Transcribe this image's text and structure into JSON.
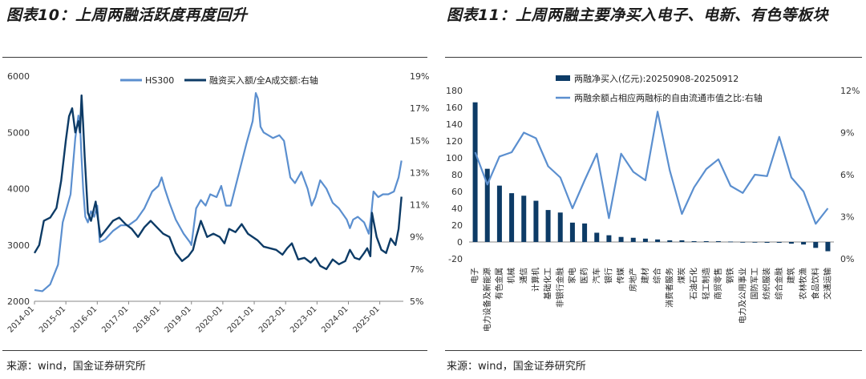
{
  "left_panel": {
    "title": "图表10：上周两融活跃度再度回升",
    "source": "来源：wind，国金证券研究所"
  },
  "right_panel": {
    "title": "图表11：上周两融主要净买入电子、电新、有色等板块",
    "source": "来源：wind，国金证券研究所"
  },
  "colors": {
    "light_blue": "#5b8fcf",
    "dark_navy": "#0d3b66",
    "rule": "#3a3a3a"
  },
  "chart_data": [
    {
      "type": "line",
      "title": "",
      "series": [
        {
          "name": "HS300",
          "axis": "left",
          "color": "#5b8fcf",
          "x": [
            2014.0,
            2014.25,
            2014.5,
            2014.75,
            2014.9,
            2015.0,
            2015.15,
            2015.3,
            2015.4,
            2015.45,
            2015.5,
            2015.55,
            2015.62,
            2015.7,
            2015.8,
            2015.9,
            2016.0,
            2016.08,
            2016.25,
            2016.5,
            2016.75,
            2016.95,
            2017.0,
            2017.25,
            2017.5,
            2017.75,
            2017.95,
            2018.05,
            2018.15,
            2018.3,
            2018.5,
            2018.75,
            2018.95,
            2019.0,
            2019.15,
            2019.3,
            2019.45,
            2019.6,
            2019.8,
            2019.95,
            2020.1,
            2020.25,
            2020.5,
            2020.75,
            2020.95,
            2021.05,
            2021.12,
            2021.2,
            2021.3,
            2021.45,
            2021.6,
            2021.8,
            2021.95,
            2022.15,
            2022.3,
            2022.5,
            2022.7,
            2022.83,
            2022.95,
            2023.1,
            2023.3,
            2023.5,
            2023.7,
            2023.95,
            2024.05,
            2024.15,
            2024.3,
            2024.5,
            2024.65,
            2024.72,
            2024.8,
            2024.95,
            2025.1,
            2025.27,
            2025.45,
            2025.6,
            2025.69
          ],
          "values": [
            2200,
            2180,
            2300,
            2650,
            3400,
            3600,
            3900,
            4900,
            5300,
            5150,
            4550,
            4000,
            3500,
            3400,
            3600,
            3500,
            3700,
            3050,
            3100,
            3250,
            3350,
            3350,
            3350,
            3450,
            3650,
            3950,
            4050,
            4200,
            4000,
            3750,
            3450,
            3200,
            3050,
            3000,
            3650,
            3800,
            3700,
            3900,
            3850,
            4050,
            3700,
            3700,
            4250,
            4800,
            5200,
            5700,
            5600,
            5100,
            5000,
            4950,
            4900,
            4950,
            4850,
            4200,
            4100,
            4300,
            4000,
            3700,
            3850,
            4150,
            4000,
            3750,
            3650,
            3450,
            3300,
            3450,
            3500,
            3400,
            3200,
            3500,
            3950,
            3850,
            3900,
            3900,
            3950,
            4200,
            4500
          ]
        },
        {
          "name": "融资买入额/全A成交额:右轴",
          "axis": "right",
          "color": "#0d3b66",
          "x": [
            2014.0,
            2014.15,
            2014.3,
            2014.5,
            2014.7,
            2014.85,
            2015.0,
            2015.1,
            2015.2,
            2015.3,
            2015.4,
            2015.45,
            2015.5,
            2015.55,
            2015.6,
            2015.7,
            2015.8,
            2015.95,
            2016.1,
            2016.3,
            2016.5,
            2016.7,
            2016.9,
            2017.1,
            2017.3,
            2017.5,
            2017.7,
            2017.9,
            2018.1,
            2018.3,
            2018.5,
            2018.7,
            2018.9,
            2019.05,
            2019.15,
            2019.3,
            2019.5,
            2019.7,
            2019.9,
            2020.05,
            2020.2,
            2020.4,
            2020.6,
            2020.8,
            2020.95,
            2021.1,
            2021.3,
            2021.5,
            2021.7,
            2021.9,
            2022.05,
            2022.2,
            2022.4,
            2022.6,
            2022.8,
            2022.95,
            2023.1,
            2023.3,
            2023.5,
            2023.7,
            2023.9,
            2024.05,
            2024.2,
            2024.35,
            2024.5,
            2024.6,
            2024.7,
            2024.75,
            2024.8,
            2024.9,
            2025.05,
            2025.2,
            2025.35,
            2025.5,
            2025.6,
            2025.69
          ],
          "values": [
            8.0,
            8.5,
            10.0,
            10.2,
            10.8,
            12.5,
            15.0,
            16.5,
            17.0,
            15.5,
            16.2,
            15.5,
            17.8,
            16.0,
            14.0,
            10.5,
            10.0,
            11.2,
            9.0,
            9.5,
            10.0,
            10.2,
            9.8,
            9.5,
            9.0,
            9.6,
            10.0,
            9.6,
            9.2,
            9.0,
            8.0,
            7.5,
            7.8,
            8.2,
            9.0,
            10.0,
            9.0,
            9.2,
            9.0,
            8.6,
            9.5,
            9.3,
            9.8,
            9.2,
            9.0,
            8.8,
            8.4,
            8.3,
            8.2,
            7.9,
            8.3,
            8.6,
            7.6,
            7.7,
            7.4,
            7.7,
            7.2,
            7.0,
            7.6,
            7.3,
            7.5,
            8.2,
            7.7,
            7.6,
            8.0,
            8.3,
            7.8,
            10.5,
            10.0,
            9.0,
            8.2,
            8.0,
            8.9,
            8.5,
            9.5,
            11.5
          ]
        }
      ],
      "xlabel": "",
      "ylabel": "",
      "ylim": [
        2000,
        6000
      ],
      "y2lim": [
        5,
        19
      ],
      "xlim": [
        2014.0,
        2025.75
      ],
      "x_tick_labels": [
        "2014-01",
        "2015-01",
        "2016-01",
        "2017-01",
        "2018-01",
        "2019-01",
        "2020-01",
        "2021-01",
        "2022-01",
        "2023-01",
        "2024-01",
        "2025-01"
      ],
      "y_tick_labels": [
        "2000",
        "3000",
        "4000",
        "5000",
        "6000"
      ],
      "y2_tick_labels": [
        "5%",
        "7%",
        "9%",
        "11%",
        "13%",
        "15%",
        "17%",
        "19%"
      ],
      "legend_position": "top"
    },
    {
      "type": "bar",
      "title": "",
      "categories": [
        "电子",
        "电力设备及新能源",
        "有色金属",
        "机械",
        "通信",
        "计算机",
        "基础化工",
        "非银行金融",
        "家电",
        "医药",
        "汽车",
        "银行",
        "传媒",
        "房地产",
        "建材",
        "综合",
        "消费者服务",
        "煤炭",
        "石油石化",
        "轻工制造",
        "商贸零售",
        "钢铁",
        "电力及公用事业",
        "国防军工",
        "纺织服装",
        "综合金融",
        "建筑",
        "农林牧渔",
        "食品饮料",
        "交通运输"
      ],
      "series": [
        {
          "name": "两融净买入(亿元):20250908-20250912",
          "axis": "left",
          "color": "#0d3b66",
          "values": [
            166,
            87,
            67,
            58,
            55,
            49,
            38,
            35,
            23,
            22,
            11,
            8,
            6,
            5,
            4,
            3,
            2,
            2,
            1,
            1,
            1,
            0.5,
            -0.5,
            -0.5,
            -1,
            -1,
            -2,
            -3,
            -7,
            -11
          ]
        },
        {
          "name": "两融余额占相应两融标的自由流通市值之比:右轴",
          "axis": "right",
          "color": "#5b8fcf",
          "values": [
            7.6,
            5.3,
            7.3,
            7.6,
            9.0,
            8.6,
            6.6,
            5.8,
            3.6,
            5.6,
            7.5,
            2.9,
            7.5,
            6.2,
            5.6,
            10.5,
            6.3,
            3.2,
            5.1,
            6.4,
            7.1,
            5.2,
            4.7,
            6.0,
            5.9,
            8.7,
            5.8,
            4.8,
            2.5,
            3.6
          ]
        }
      ],
      "xlabel": "",
      "ylabel": "",
      "ylim": [
        -20,
        180
      ],
      "y2lim": [
        0,
        12
      ],
      "y_tick_labels": [
        "-20",
        "0",
        "20",
        "40",
        "60",
        "80",
        "100",
        "120",
        "140",
        "160",
        "180"
      ],
      "y2_tick_labels": [
        "0%",
        "3%",
        "6%",
        "9%",
        "12%"
      ],
      "legend_position": "top"
    }
  ]
}
